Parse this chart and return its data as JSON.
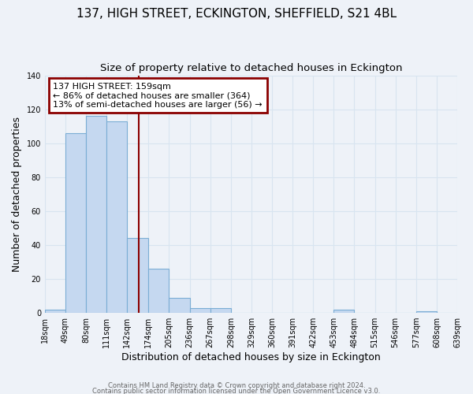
{
  "title": "137, HIGH STREET, ECKINGTON, SHEFFIELD, S21 4BL",
  "subtitle": "Size of property relative to detached houses in Eckington",
  "xlabel": "Distribution of detached houses by size in Eckington",
  "ylabel": "Number of detached properties",
  "bin_edges": [
    18,
    49,
    80,
    111,
    142,
    174,
    205,
    236,
    267,
    298,
    329,
    360,
    391,
    422,
    453,
    484,
    515,
    546,
    577,
    608,
    639
  ],
  "bar_heights": [
    2,
    106,
    116,
    113,
    44,
    26,
    9,
    3,
    3,
    0,
    0,
    0,
    0,
    0,
    2,
    0,
    0,
    0,
    1,
    0
  ],
  "bar_color": "#c5d8f0",
  "bar_edgecolor": "#7badd4",
  "ylim_max": 140,
  "yticks": [
    0,
    20,
    40,
    60,
    80,
    100,
    120,
    140
  ],
  "property_size": 159,
  "vline_color": "#8b0000",
  "annotation_line1": "137 HIGH STREET: 159sqm",
  "annotation_line2": "← 86% of detached houses are smaller (364)",
  "annotation_line3": "13% of semi-detached houses are larger (56) →",
  "annotation_box_edgecolor": "#8b0000",
  "footer1": "Contains HM Land Registry data © Crown copyright and database right 2024.",
  "footer2": "Contains public sector information licensed under the Open Government Licence v3.0.",
  "background_color": "#eef2f8",
  "grid_color": "#d8e4f0",
  "title_fontsize": 11,
  "subtitle_fontsize": 9.5,
  "axis_label_fontsize": 9,
  "tick_fontsize": 7,
  "annotation_fontsize": 8,
  "footer_fontsize": 6
}
